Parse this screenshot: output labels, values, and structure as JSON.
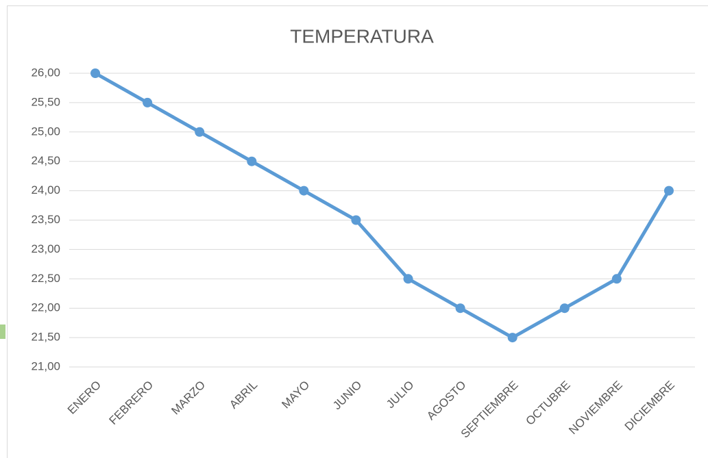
{
  "chart_data": {
    "type": "line",
    "title": "TEMPERATURA",
    "categories": [
      "ENERO",
      "FEBRERO",
      "MARZO",
      "ABRIL",
      "MAYO",
      "JUNIO",
      "JULIO",
      "AGOSTO",
      "SEPTIEMBRE",
      "OCTUBRE",
      "NOVIEMBRE",
      "DICIEMBRE"
    ],
    "series": [
      {
        "name": "TEMPERATURA",
        "color": "#5b9bd5",
        "values": [
          26,
          25.5,
          25,
          24.5,
          24,
          23.5,
          22.5,
          22,
          21.5,
          22,
          22.5,
          24
        ]
      }
    ],
    "ylim": [
      21,
      26
    ],
    "yticks": [
      {
        "value": 21,
        "label": "21,00"
      },
      {
        "value": 21.5,
        "label": "21,50"
      },
      {
        "value": 22,
        "label": "22,00"
      },
      {
        "value": 22.5,
        "label": "22,50"
      },
      {
        "value": 23,
        "label": "23,00"
      },
      {
        "value": 23.5,
        "label": "23,50"
      },
      {
        "value": 24,
        "label": "24,00"
      },
      {
        "value": 24.5,
        "label": "24,50"
      },
      {
        "value": 25,
        "label": "25,00"
      },
      {
        "value": 25.5,
        "label": "25,50"
      },
      {
        "value": 26,
        "label": "26,00"
      }
    ],
    "grid": true
  }
}
